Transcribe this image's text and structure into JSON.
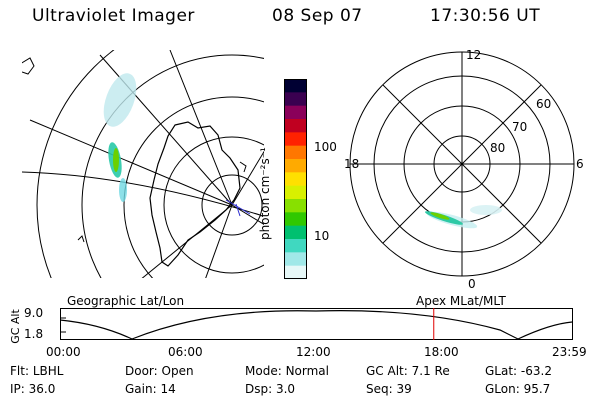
{
  "header": {
    "title": "Ultraviolet Imager",
    "date": "08 Sep 07",
    "time": "17:30:56 UT"
  },
  "colorbar": {
    "unit_label": "photon cm⁻²s⁻¹",
    "ticks": [
      "100",
      "10"
    ],
    "colors": [
      "#000033",
      "#3a0050",
      "#8a005a",
      "#c00020",
      "#ff2200",
      "#ff7700",
      "#ffaa00",
      "#ffe000",
      "#d8f000",
      "#88e000",
      "#30c800",
      "#00c070",
      "#40d8c0",
      "#a0e8e8",
      "#e6f8f8"
    ]
  },
  "polar_plot": {
    "clock_labels": {
      "top": "12",
      "right": "6",
      "bottom": "0",
      "left": "18"
    },
    "lat_labels": [
      "60",
      "70",
      "80"
    ]
  },
  "left_map": {
    "label": "Geographic Lat/Lon"
  },
  "altitude_panel": {
    "axis_label": "GC Alt",
    "y_ticks": [
      "9.0",
      "1.8"
    ],
    "right_label": "Apex MLat/MLT",
    "time_ticks": [
      "00:00",
      "06:00",
      "12:00",
      "18:00",
      "23:59"
    ],
    "current_time_marker_hours": 17.52,
    "marker_color": "#e00000"
  },
  "status": {
    "row1": [
      {
        "label": "Flt:",
        "value": "LBHL"
      },
      {
        "label": "Door:",
        "value": "Open"
      },
      {
        "label": "Mode:",
        "value": "Normal"
      },
      {
        "label": "GC Alt:",
        "value": "7.1 Re"
      },
      {
        "label": "GLat:",
        "value": "-63.2"
      }
    ],
    "row2": [
      {
        "label": "IP:",
        "value": "36.0"
      },
      {
        "label": "Gain:",
        "value": "14"
      },
      {
        "label": "Dsp:",
        "value": "3.0"
      },
      {
        "label": "Seq:",
        "value": "39"
      },
      {
        "label": "GLon:",
        "value": "95.7"
      }
    ]
  }
}
